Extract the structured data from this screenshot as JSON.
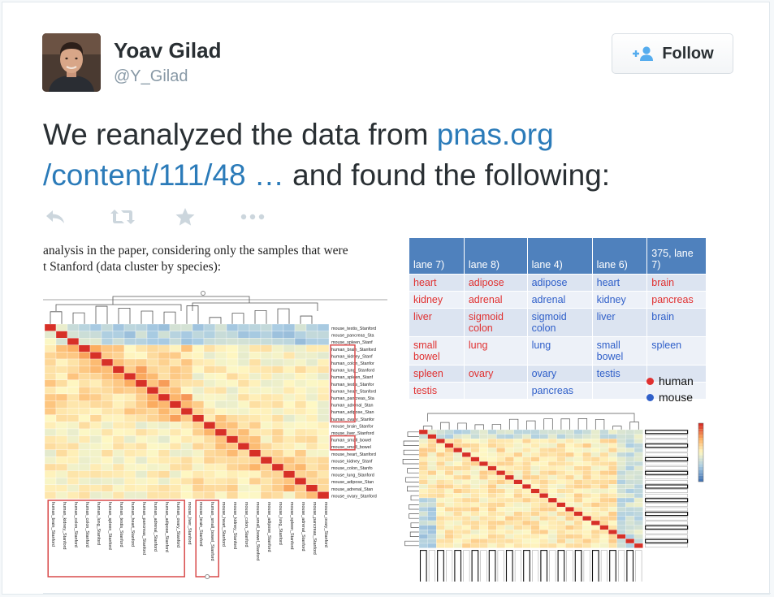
{
  "user": {
    "name": "Yoav Gilad",
    "handle": "@Y_Gilad"
  },
  "follow": {
    "label": "Follow"
  },
  "tweet": {
    "text_before": "We reanalyzed the data from ",
    "link_line1": "pnas.org",
    "link_line2": "/content/111/48 …",
    "text_after": " and found the following:"
  },
  "actions": [
    "reply-icon",
    "retweet-icon",
    "favorite-icon",
    "more-icon"
  ],
  "media_left": {
    "caption_line1": "analysis in the paper, considering only the samples that were",
    "caption_line2": "t Stanford (data cluster by species):",
    "row_labels": [
      "mouse_testis_Stanford",
      "mouse_pancreas_Sta",
      "mouse_spleen_Stanf",
      "human_brain_Stanford",
      "human_kidney_Stanf",
      "human_colon_Stanfor",
      "human_lung_Stanford",
      "human_spleen_Stanf",
      "human_testis_Stanfor",
      "human_heart_Stanford",
      "human_pancreas_Sta",
      "human_adrenal_Stan",
      "human_adipose_Stan",
      "human_ovary_Stanfor",
      "mouse_brain_Stanfor",
      "mouse_liver_Stanford",
      "human_small_bowel",
      "mouse_small_bowel",
      "mouse_heart_Stanford",
      "mouse_kidney_Stanf",
      "mouse_colon_Stanfo",
      "mouse_lung_Stanford",
      "mouse_adipose_Stan",
      "mouse_adrenal_Stan",
      "mouse_ovary_Stanford"
    ],
    "col_labels": [
      "human_brain_Stanford",
      "human_kidney_Stanford",
      "human_colon_Stanford",
      "human_colon_Stanford",
      "human_lung_Stanford",
      "human_spleen_Stanford",
      "human_testis_Stanford",
      "human_heart_Stanford",
      "human_pancreas_Stanford",
      "human_adrenal_Stanford",
      "human_adipose_Stanford",
      "human_ovary_Stanford",
      "mouse_liver_Stanford",
      "mouse_brain_Stanford",
      "human_small_bowel_Stanford",
      "mouse_heart_Stanford",
      "mouse_kidney_Stanford",
      "mouse_colon_Stanford",
      "mouse_small_bowel_Stanford",
      "mouse_adipose_Stanford",
      "mouse_lung_Stanford",
      "mouse_spleen_Stanford",
      "mouse_adrenal_Stanford",
      "mouse_pancreas_Stanford",
      "mouse_ovary_Stanford"
    ]
  },
  "media_right": {
    "headers": [
      "lane 7)",
      "lane 8)",
      "lane 4)",
      "lane 6)",
      "375, lane 7)"
    ],
    "rows": [
      [
        {
          "t": "heart",
          "s": "human"
        },
        {
          "t": "adipose",
          "s": "human"
        },
        {
          "t": "adipose",
          "s": "mouse"
        },
        {
          "t": "heart",
          "s": "mouse"
        },
        {
          "t": "brain",
          "s": "human"
        }
      ],
      [
        {
          "t": "kidney",
          "s": "human"
        },
        {
          "t": "adrenal",
          "s": "human"
        },
        {
          "t": "adrenal",
          "s": "mouse"
        },
        {
          "t": "kidney",
          "s": "mouse"
        },
        {
          "t": "pancreas",
          "s": "human"
        }
      ],
      [
        {
          "t": "liver",
          "s": "human"
        },
        {
          "t": "sigmoid colon",
          "s": "human"
        },
        {
          "t": "sigmoid colon",
          "s": "mouse"
        },
        {
          "t": "liver",
          "s": "mouse"
        },
        {
          "t": "brain",
          "s": "mouse"
        }
      ],
      [
        {
          "t": "small bowel",
          "s": "human"
        },
        {
          "t": "lung",
          "s": "human"
        },
        {
          "t": "lung",
          "s": "mouse"
        },
        {
          "t": "small bowel",
          "s": "mouse"
        },
        {
          "t": "spleen",
          "s": "mouse"
        }
      ],
      [
        {
          "t": "spleen",
          "s": "human"
        },
        {
          "t": "ovary",
          "s": "human"
        },
        {
          "t": "ovary",
          "s": "mouse"
        },
        {
          "t": "testis",
          "s": "mouse"
        },
        {
          "t": "",
          "s": "none"
        }
      ],
      [
        {
          "t": "testis",
          "s": "human"
        },
        {
          "t": "",
          "s": "none"
        },
        {
          "t": "pancreas",
          "s": "mouse"
        },
        {
          "t": "",
          "s": "none"
        },
        {
          "t": "",
          "s": "none"
        }
      ]
    ],
    "legend": [
      {
        "label": "human",
        "color": "#e03030"
      },
      {
        "label": "mouse",
        "color": "#2f5fc9"
      }
    ]
  },
  "colors": {
    "link": "#2b7bb9",
    "icon": "#ccd6dd",
    "follow_icon": "#55acee",
    "heat_low": "#4575b4",
    "heat_mid": "#fdf6c3",
    "heat_high": "#d73027",
    "highlight": "#d94a4a"
  }
}
